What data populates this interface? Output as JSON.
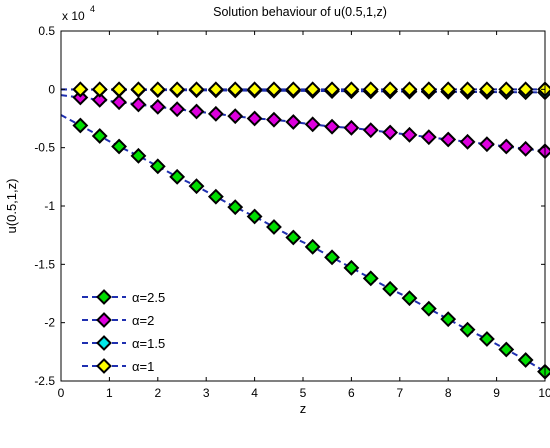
{
  "chart_data": {
    "type": "line",
    "title": "Solution behaviour of u(0.5,1,z)",
    "xlabel": "z",
    "ylabel": "u(0.5,1,z)",
    "xlim": [
      0,
      10
    ],
    "ylim": [
      -2.5,
      0.5
    ],
    "y_multiplier_label": "x 10",
    "y_multiplier_exponent": "4",
    "x_ticks": [
      "0",
      "1",
      "2",
      "3",
      "4",
      "5",
      "6",
      "7",
      "8",
      "9",
      "10"
    ],
    "y_ticks": [
      "-2.5",
      "-2",
      "-1.5",
      "-1",
      "-0.5",
      "0",
      "0.5"
    ],
    "y_tick_values": [
      -2.5,
      -2,
      -1.5,
      -1,
      -0.5,
      0,
      0.5
    ],
    "grid": false,
    "legend_position": "bottom-left",
    "line_color": "#1f2fb0",
    "line_style": "dashed",
    "marker": "diamond",
    "series": [
      {
        "name": "α=2.5",
        "color": "#00dd00",
        "x": [
          0.4,
          0.8,
          1.2,
          1.6,
          2.0,
          2.4,
          2.8,
          3.2,
          3.6,
          4.0,
          4.4,
          4.8,
          5.2,
          5.6,
          6.0,
          6.4,
          6.8,
          7.2,
          7.6,
          8.0,
          8.4,
          8.8,
          9.2,
          9.6,
          10.0
        ],
        "values": [
          -0.31,
          -0.4,
          -0.49,
          -0.57,
          -0.66,
          -0.75,
          -0.83,
          -0.92,
          -1.01,
          -1.09,
          -1.18,
          -1.27,
          -1.35,
          -1.44,
          -1.53,
          -1.62,
          -1.71,
          -1.79,
          -1.88,
          -1.97,
          -2.06,
          -2.14,
          -2.23,
          -2.32,
          -2.42
        ]
      },
      {
        "name": "α=2",
        "color": "#dd00dd",
        "x": [
          0.4,
          0.8,
          1.2,
          1.6,
          2.0,
          2.4,
          2.8,
          3.2,
          3.6,
          4.0,
          4.4,
          4.8,
          5.2,
          5.6,
          6.0,
          6.4,
          6.8,
          7.2,
          7.6,
          8.0,
          8.4,
          8.8,
          9.2,
          9.6,
          10.0
        ],
        "values": [
          -0.07,
          -0.09,
          -0.11,
          -0.13,
          -0.15,
          -0.17,
          -0.19,
          -0.21,
          -0.23,
          -0.25,
          -0.26,
          -0.28,
          -0.3,
          -0.32,
          -0.33,
          -0.35,
          -0.37,
          -0.39,
          -0.41,
          -0.43,
          -0.45,
          -0.47,
          -0.49,
          -0.51,
          -0.53
        ]
      },
      {
        "name": "α=1.5",
        "color": "#00e8e8",
        "x": [
          0.4,
          0.8,
          1.2,
          1.6,
          2.0,
          2.4,
          2.8,
          3.2,
          3.6,
          4.0,
          4.4,
          4.8,
          5.2,
          5.6,
          6.0,
          6.4,
          6.8,
          7.2,
          7.6,
          8.0,
          8.4,
          8.8,
          9.2,
          9.6,
          10.0
        ],
        "values": [
          -0.002,
          -0.003,
          -0.004,
          -0.005,
          -0.006,
          -0.007,
          -0.008,
          -0.009,
          -0.01,
          -0.011,
          -0.012,
          -0.013,
          -0.014,
          -0.015,
          -0.016,
          -0.017,
          -0.018,
          -0.019,
          -0.02,
          -0.021,
          -0.022,
          -0.023,
          -0.024,
          -0.025,
          -0.026
        ]
      },
      {
        "name": "α=1",
        "color": "#ffff00",
        "x": [
          0.4,
          0.8,
          1.2,
          1.6,
          2.0,
          2.4,
          2.8,
          3.2,
          3.6,
          4.0,
          4.4,
          4.8,
          5.2,
          5.6,
          6.0,
          6.4,
          6.8,
          7.2,
          7.6,
          8.0,
          8.4,
          8.8,
          9.2,
          9.6,
          10.0
        ],
        "values": [
          0.0,
          0.0,
          0.0,
          0.0,
          0.0,
          0.0,
          0.0,
          0.0,
          0.0,
          0.0,
          0.0,
          0.0,
          0.0,
          0.0,
          0.0,
          0.0,
          0.0,
          0.0,
          0.0,
          0.0,
          0.0,
          0.0,
          0.0,
          0.0,
          0.0
        ]
      }
    ]
  }
}
